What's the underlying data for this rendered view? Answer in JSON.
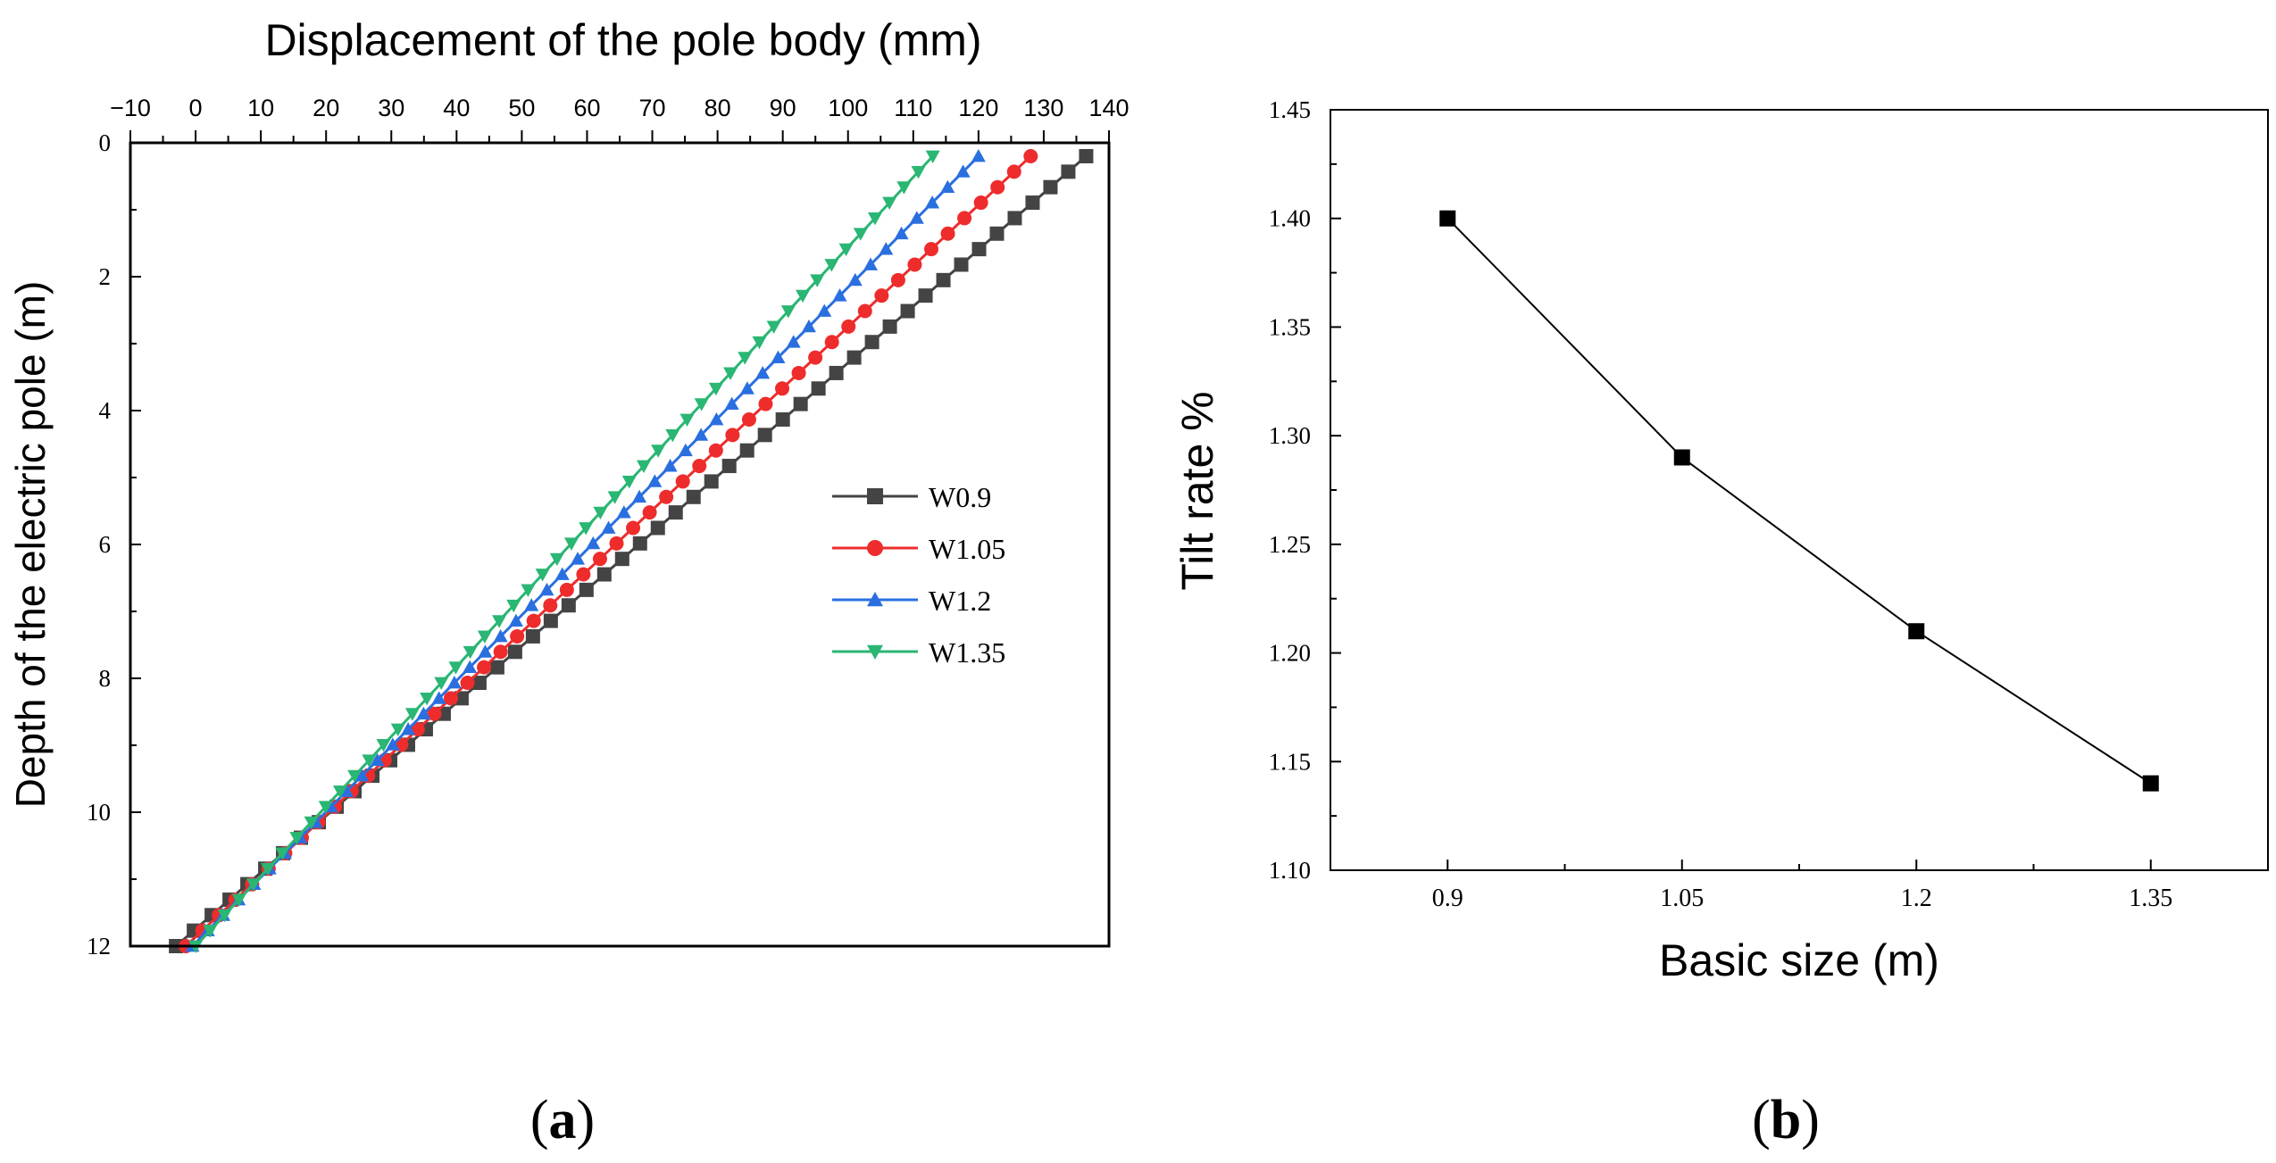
{
  "chart_data": [
    {
      "type": "line",
      "panel": "a",
      "caption_open": "(",
      "caption_letter": "a",
      "caption_close": ")",
      "title": "",
      "xlabel": "Displacement of the pole body (mm)",
      "ylabel": "Depth of the electric pole (m)",
      "xlim": [
        -10,
        140
      ],
      "ylim": [
        12,
        0
      ],
      "xticks": [
        "−10",
        "0",
        "10",
        "20",
        "30",
        "40",
        "50",
        "60",
        "70",
        "80",
        "90",
        "100",
        "110",
        "120",
        "130",
        "140"
      ],
      "yticks": [
        "0",
        "2",
        "4",
        "6",
        "8",
        "10",
        "12"
      ],
      "x_axis_position": "top",
      "y_axis_inverted": true,
      "legend_position": "center-right",
      "series": [
        {
          "name": "W0.9",
          "marker": "square",
          "color": "#444444",
          "depth_start": 0.2,
          "depth_end": 12.0,
          "points": 52,
          "disp_top": 136.5,
          "disp_bottom": -3
        },
        {
          "name": "W1.05",
          "marker": "circle",
          "color": "#ee2c2c",
          "depth_start": 0.2,
          "depth_end": 12.0,
          "points": 52,
          "disp_top": 128,
          "disp_bottom": -1.5
        },
        {
          "name": "W1.2",
          "marker": "triangle-up",
          "color": "#2a6fe0",
          "depth_start": 0.2,
          "depth_end": 12.0,
          "points": 52,
          "disp_top": 120,
          "disp_bottom": -0.5
        },
        {
          "name": "W1.35",
          "marker": "triangle-down",
          "color": "#2ab673",
          "depth_start": 0.2,
          "depth_end": 12.0,
          "points": 52,
          "disp_top": 113,
          "disp_bottom": 0
        }
      ]
    },
    {
      "type": "line",
      "panel": "b",
      "caption_open": "(",
      "caption_letter": "b",
      "caption_close": ")",
      "title": "",
      "xlabel": "Basic size (m)",
      "ylabel": "Tilt rate %",
      "categories": [
        "0.9",
        "1.05",
        "1.2",
        "1.35"
      ],
      "values": [
        1.4,
        1.29,
        1.21,
        1.14
      ],
      "xlim": [
        0.825,
        1.425
      ],
      "ylim": [
        1.1,
        1.45
      ],
      "yticks": [
        "1.10",
        "1.15",
        "1.20",
        "1.25",
        "1.30",
        "1.35",
        "1.40",
        "1.45"
      ],
      "marker": "square",
      "color": "#000000",
      "grid": false
    }
  ]
}
